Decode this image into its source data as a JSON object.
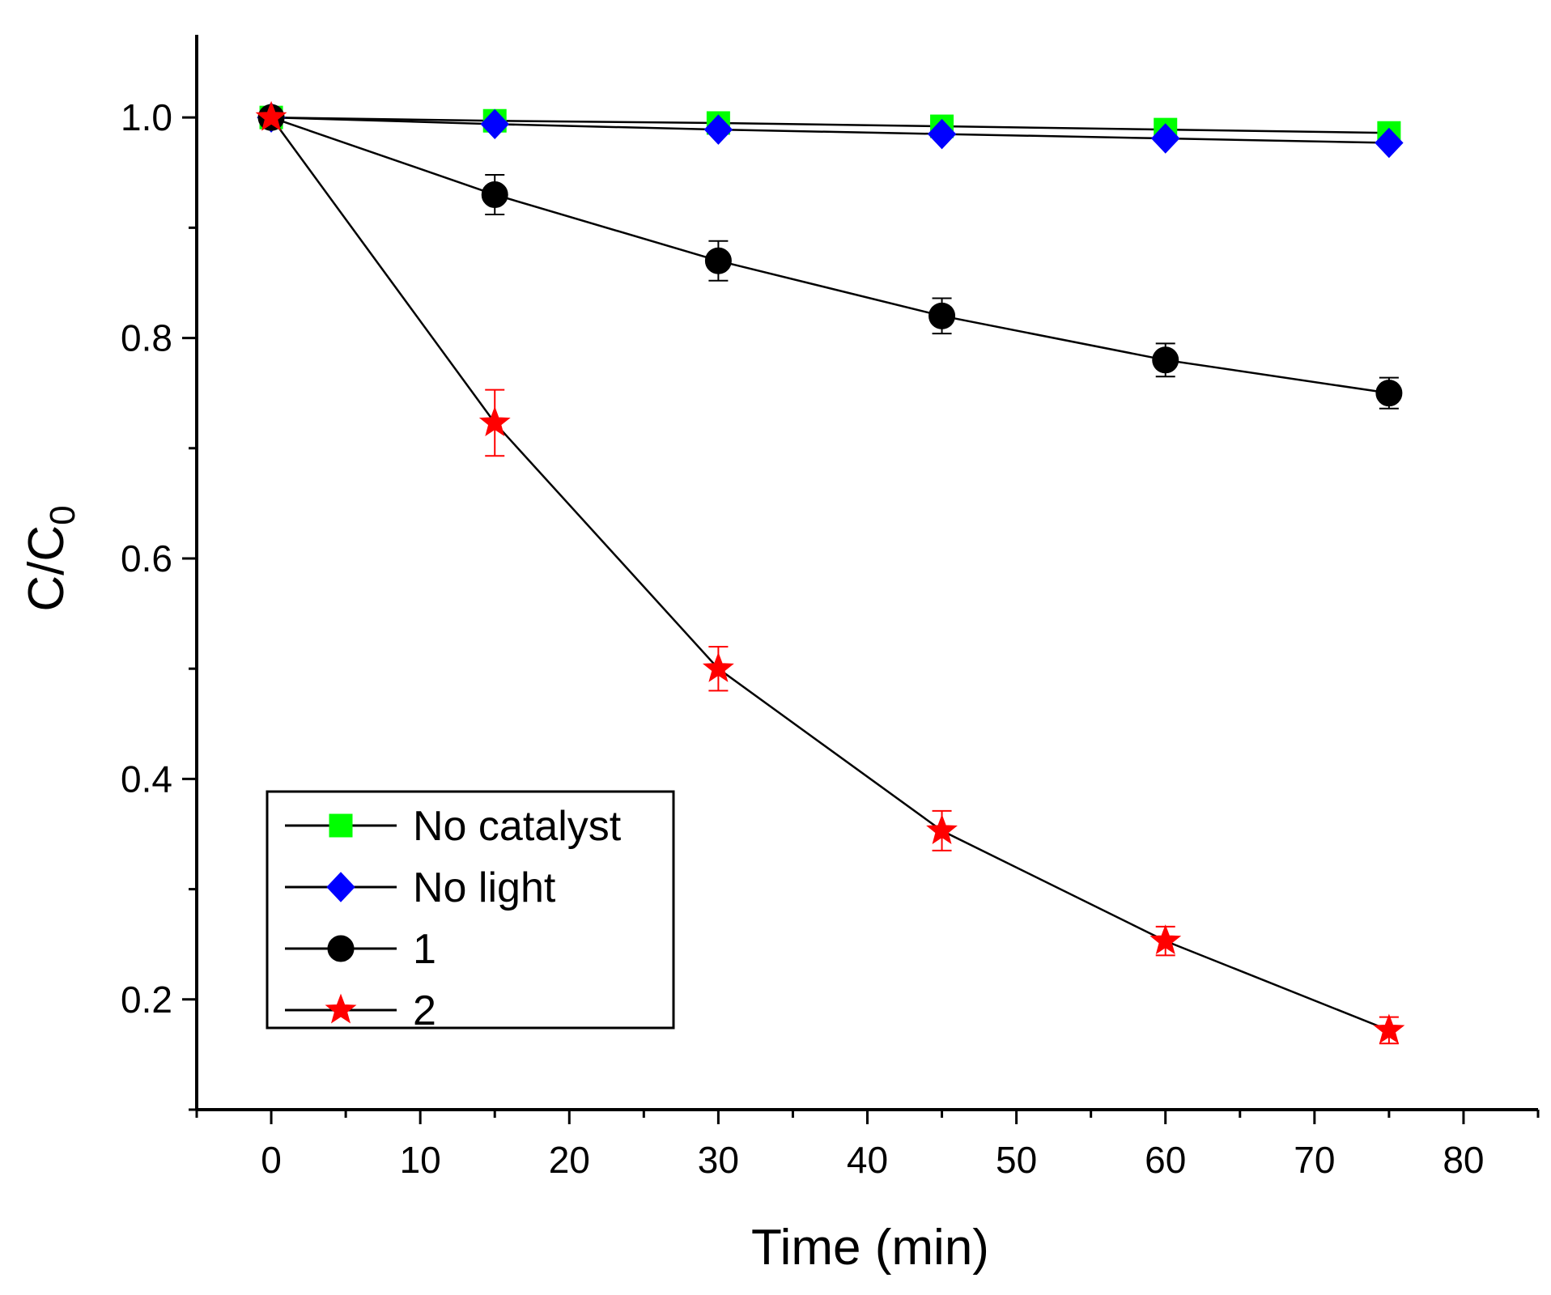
{
  "chart_data": {
    "type": "line",
    "xlabel": "Time (min)",
    "ylabel_main": "C/C",
    "ylabel_sub": "0",
    "xlim": [
      -5,
      85
    ],
    "ylim": [
      0.1,
      1.075
    ],
    "xticks": [
      0,
      10,
      20,
      30,
      40,
      50,
      60,
      70,
      80
    ],
    "xtick_labels": [
      "0",
      "10",
      "20",
      "30",
      "40",
      "50",
      "60",
      "70",
      "80"
    ],
    "yticks": [
      0.2,
      0.4,
      0.6,
      0.8,
      1.0
    ],
    "ytick_labels": [
      "0.2",
      "0.4",
      "0.6",
      "0.8",
      "1.0"
    ],
    "x": [
      0,
      15,
      30,
      45,
      60,
      75
    ],
    "legend_position": "bottom-left",
    "series": [
      {
        "name": "No catalyst",
        "marker": "square",
        "color": "#00ff00",
        "errorColor": "#000000",
        "values": [
          1.0,
          0.997,
          0.995,
          0.992,
          0.989,
          0.986
        ],
        "errors": [
          0,
          0,
          0,
          0,
          0,
          0
        ]
      },
      {
        "name": "No light",
        "marker": "diamond",
        "color": "#0000ff",
        "errorColor": "#000000",
        "values": [
          1.0,
          0.994,
          0.989,
          0.985,
          0.981,
          0.977
        ],
        "errors": [
          0,
          0,
          0,
          0,
          0,
          0
        ]
      },
      {
        "name": "1",
        "marker": "circle",
        "color": "#000000",
        "errorColor": "#000000",
        "values": [
          1.0,
          0.93,
          0.87,
          0.82,
          0.78,
          0.75
        ],
        "errors": [
          0,
          0.018,
          0.018,
          0.016,
          0.015,
          0.014
        ]
      },
      {
        "name": "2",
        "marker": "star",
        "color": "#ff0000",
        "errorColor": "#ff0000",
        "values": [
          1.0,
          0.723,
          0.5,
          0.353,
          0.253,
          0.172
        ],
        "errors": [
          0,
          0.03,
          0.02,
          0.018,
          0.013,
          0.012
        ]
      }
    ]
  }
}
